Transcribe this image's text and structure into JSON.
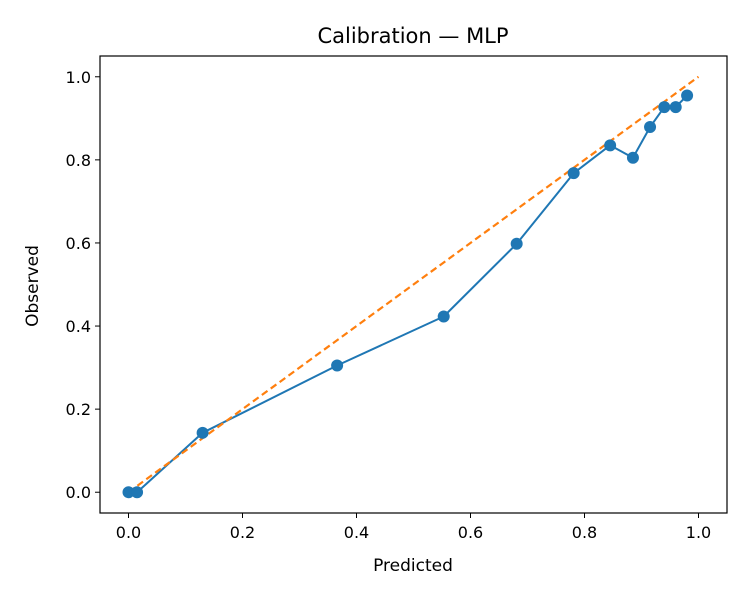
{
  "chart_data": {
    "type": "line",
    "title": "Calibration — MLP",
    "xlabel": "Predicted",
    "ylabel": "Observed",
    "xlim": [
      -0.05,
      1.05
    ],
    "ylim": [
      -0.05,
      1.05
    ],
    "xticks": [
      0.0,
      0.2,
      0.4,
      0.6,
      0.8,
      1.0
    ],
    "yticks": [
      0.0,
      0.2,
      0.4,
      0.6,
      0.8,
      1.0
    ],
    "xtick_labels": [
      "0.0",
      "0.2",
      "0.4",
      "0.6",
      "0.8",
      "1.0"
    ],
    "ytick_labels": [
      "0.0",
      "0.2",
      "0.4",
      "0.6",
      "0.8",
      "1.0"
    ],
    "grid": false,
    "series": [
      {
        "style": "line-with-markers",
        "color": "#1f77b4",
        "x": [
          0.0,
          0.015,
          0.13,
          0.366,
          0.553,
          0.681,
          0.781,
          0.845,
          0.885,
          0.915,
          0.94,
          0.96,
          0.98
        ],
        "y": [
          0.0,
          0.0,
          0.143,
          0.305,
          0.423,
          0.598,
          0.768,
          0.835,
          0.805,
          0.879,
          0.927,
          0.927,
          0.955
        ]
      },
      {
        "style": "dashed",
        "color": "#ff7f0e",
        "x": [
          0.0,
          1.0
        ],
        "y": [
          0.0,
          1.0
        ]
      }
    ]
  }
}
